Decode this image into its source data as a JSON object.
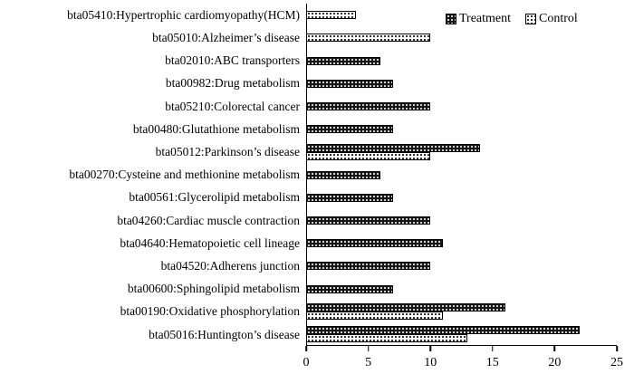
{
  "chart_data": {
    "type": "bar",
    "orientation": "horizontal",
    "title": "",
    "xlabel": "",
    "ylabel": "",
    "xlim": [
      0,
      25
    ],
    "xticks": [
      0,
      5,
      10,
      15,
      20,
      25
    ],
    "grid": false,
    "legend_position": "top-right",
    "categories": [
      "bta05410:Hypertrophic cardiomyopathy(HCM)",
      "bta05010:Alzheimer’s disease",
      "bta02010:ABC transporters",
      "bta00982:Drug metabolism",
      "bta05210:Colorectal cancer",
      "bta00480:Glutathione metabolism",
      "bta05012:Parkinson’s disease",
      "bta00270:Cysteine and methionine metabolism",
      "bta00561:Glycerolipid metabolism",
      "bta04260:Cardiac muscle contraction",
      "bta04640:Hematopoietic cell lineage",
      "bta04520:Adherens junction",
      "bta00600:Sphingolipid metabolism",
      "bta00190:Oxidative phosphorylation",
      "bta05016:Huntington’s disease"
    ],
    "series": [
      {
        "name": "Treatment",
        "values": [
          null,
          null,
          6,
          7,
          10,
          7,
          14,
          6,
          7,
          10,
          11,
          10,
          7,
          16,
          22
        ]
      },
      {
        "name": "Control",
        "values": [
          4,
          10,
          null,
          null,
          null,
          null,
          10,
          null,
          null,
          null,
          null,
          null,
          null,
          11,
          13
        ]
      }
    ]
  },
  "legend": {
    "treatment_label": "Treatment",
    "control_label": "Control"
  },
  "colors": {
    "treatment_fill": "#161616",
    "treatment_dot": "#ffffff",
    "control_fill": "#ffffff",
    "control_dot": "#000000",
    "axis": "#000000"
  }
}
